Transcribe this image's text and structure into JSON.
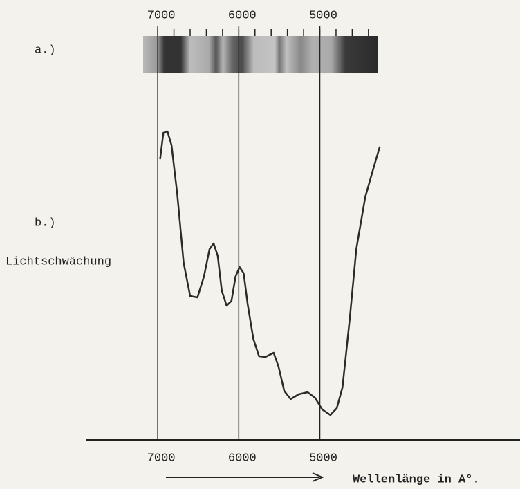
{
  "chart_data": {
    "type": "line",
    "panel_labels": [
      "a.)",
      "b.)"
    ],
    "ylabel": "Lichtschwächung",
    "xlabel": "Wellenlänge in A°.",
    "xlim": [
      7880,
      2530
    ],
    "ylim": [
      0,
      100
    ],
    "xticks": [
      7000,
      6000,
      5000
    ],
    "band_minor_ticks": [
      7000,
      6800,
      6600,
      6400,
      6200,
      6000,
      5800,
      5600,
      5400,
      5200,
      5000,
      4800,
      4600,
      4400
    ],
    "color": "#2a2a2a",
    "x": [
      6970,
      6930,
      6880,
      6830,
      6760,
      6680,
      6600,
      6510,
      6430,
      6360,
      6310,
      6260,
      6210,
      6150,
      6090,
      6040,
      5990,
      5940,
      5890,
      5820,
      5750,
      5670,
      5570,
      5510,
      5440,
      5360,
      5260,
      5150,
      5060,
      4970,
      4870,
      4790,
      4720,
      4630,
      4550,
      4440,
      4330,
      4260
    ],
    "values": [
      81.2,
      88.8,
      89.2,
      85.2,
      71.2,
      51.2,
      41.6,
      41.2,
      47.2,
      55.2,
      56.8,
      53.2,
      43.2,
      38.8,
      40.2,
      47.2,
      50,
      48.2,
      39.2,
      29.2,
      24.2,
      24,
      25.2,
      21.2,
      14.2,
      11.8,
      13.2,
      13.8,
      12.2,
      8.8,
      7.2,
      9.2,
      15.2,
      35.2,
      55.2,
      70.2,
      79.2,
      84.8
    ]
  }
}
